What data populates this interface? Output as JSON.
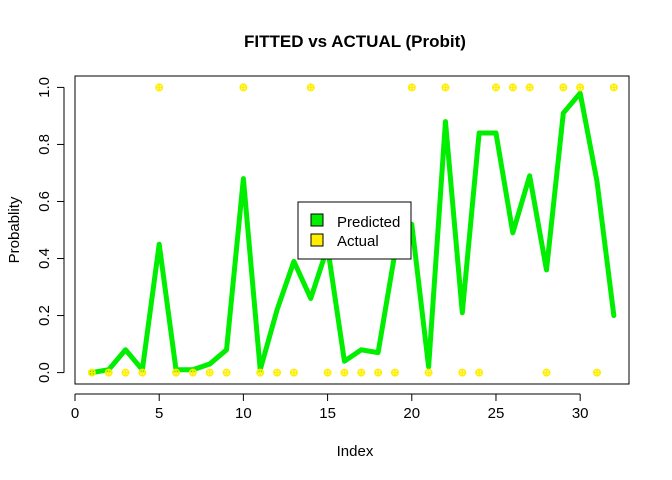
{
  "colors": {
    "predicted": "#00ee00",
    "actual": "#ffee00",
    "background": "#ffffff",
    "text": "#000000"
  },
  "chart_data": {
    "type": "line",
    "title": "FITTED vs ACTUAL (Probit)",
    "xlabel": "Index",
    "ylabel": "Probablity",
    "xlim": [
      0.0,
      32.9
    ],
    "ylim": [
      -0.04,
      1.04
    ],
    "xticks": [
      0,
      5,
      10,
      15,
      20,
      25,
      30
    ],
    "yticks": [
      0.0,
      0.2,
      0.4,
      0.6,
      0.8,
      1.0
    ],
    "xtick_labels": [
      "0",
      "5",
      "10",
      "15",
      "20",
      "25",
      "30"
    ],
    "ytick_labels": [
      "0.0",
      "0.2",
      "0.4",
      "0.6",
      "0.8",
      "1.0"
    ],
    "grid": false,
    "legend_position": "center",
    "legend": [
      "Predicted",
      "Actual"
    ],
    "x": [
      1,
      2,
      3,
      4,
      5,
      6,
      7,
      8,
      9,
      10,
      11,
      12,
      13,
      14,
      15,
      16,
      17,
      18,
      19,
      20,
      21,
      22,
      23,
      24,
      25,
      26,
      27,
      28,
      29,
      30,
      31,
      32
    ],
    "series": [
      {
        "name": "Predicted",
        "style": "line",
        "values": [
          0.0,
          0.01,
          0.08,
          0.01,
          0.45,
          0.01,
          0.01,
          0.03,
          0.08,
          0.68,
          0.01,
          0.22,
          0.39,
          0.26,
          0.44,
          0.04,
          0.08,
          0.07,
          0.42,
          0.52,
          0.02,
          0.88,
          0.21,
          0.84,
          0.84,
          0.49,
          0.69,
          0.36,
          0.91,
          0.98,
          0.67,
          0.2
        ]
      },
      {
        "name": "Actual",
        "style": "points",
        "values": [
          0,
          0,
          0,
          0,
          1,
          0,
          0,
          0,
          0,
          1,
          0,
          0,
          0,
          1,
          0,
          0,
          0,
          0,
          0,
          1,
          0,
          1,
          0,
          0,
          1,
          1,
          1,
          0,
          1,
          1,
          0,
          1
        ]
      }
    ]
  }
}
